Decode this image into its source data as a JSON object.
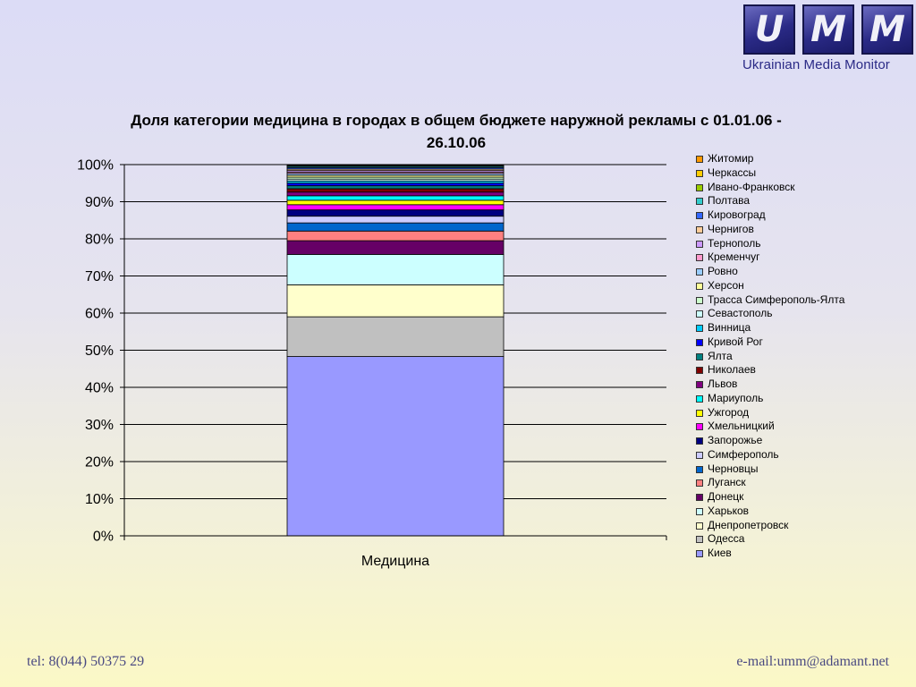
{
  "logo": {
    "letters": [
      "U",
      "M",
      "M"
    ],
    "caption": "Ukrainian Media Monitor"
  },
  "footer": {
    "tel": "tel: 8(044) 50375 29",
    "email": "e-mail:umm@adamant.net"
  },
  "chart_data": {
    "type": "bar",
    "stacked": true,
    "percent": true,
    "title": "Доля категории медицина в городах в общем  бюджете наружной рекламы с 01.01.06 - 26.10.06",
    "categories": [
      "Медицина"
    ],
    "ylim": [
      0,
      100
    ],
    "yticks": [
      "0%",
      "10%",
      "20%",
      "30%",
      "40%",
      "50%",
      "60%",
      "70%",
      "80%",
      "90%",
      "100%"
    ],
    "grid": true,
    "legend_position": "right",
    "series": [
      {
        "name": "Киев",
        "color": "#9999ff",
        "values": [
          48.3
        ]
      },
      {
        "name": "Одесса",
        "color": "#c0c0c0",
        "values": [
          10.7
        ]
      },
      {
        "name": "Днепропетровск",
        "color": "#ffffcc",
        "values": [
          8.6
        ]
      },
      {
        "name": "Харьков",
        "color": "#ccffff",
        "values": [
          8.2
        ]
      },
      {
        "name": "Донецк",
        "color": "#660066",
        "values": [
          3.7
        ]
      },
      {
        "name": "Луганск",
        "color": "#ff8080",
        "values": [
          2.6
        ]
      },
      {
        "name": "Черновцы",
        "color": "#0066cc",
        "values": [
          2.2
        ]
      },
      {
        "name": "Симферополь",
        "color": "#ccccff",
        "values": [
          1.8
        ]
      },
      {
        "name": "Запорожье",
        "color": "#000080",
        "values": [
          1.7
        ]
      },
      {
        "name": "Хмельницкий",
        "color": "#ff00ff",
        "values": [
          1.4
        ]
      },
      {
        "name": "Ужгород",
        "color": "#ffff00",
        "values": [
          1.2
        ]
      },
      {
        "name": "Мариуполь",
        "color": "#00ffff",
        "values": [
          1.2
        ]
      },
      {
        "name": "Львов",
        "color": "#800080",
        "values": [
          1.0
        ]
      },
      {
        "name": "Николаев",
        "color": "#800000",
        "values": [
          0.9
        ]
      },
      {
        "name": "Ялта",
        "color": "#008080",
        "values": [
          0.8
        ]
      },
      {
        "name": "Кривой Рог",
        "color": "#0000ff",
        "values": [
          0.7
        ]
      },
      {
        "name": "Винница",
        "color": "#00ccff",
        "values": [
          0.6
        ]
      },
      {
        "name": "Севастополь",
        "color": "#ccffff",
        "values": [
          0.5
        ]
      },
      {
        "name": "Трасса Симферополь-Ялта",
        "color": "#ccffcc",
        "values": [
          0.5
        ]
      },
      {
        "name": "Херсон",
        "color": "#ffff99",
        "values": [
          0.5
        ]
      },
      {
        "name": "Ровно",
        "color": "#99ccff",
        "values": [
          0.5
        ]
      },
      {
        "name": "Кременчуг",
        "color": "#ff99cc",
        "values": [
          0.4
        ]
      },
      {
        "name": "Тернополь",
        "color": "#cc99ff",
        "values": [
          0.4
        ]
      },
      {
        "name": "Чернигов",
        "color": "#ffcc99",
        "values": [
          0.4
        ]
      },
      {
        "name": "Кировоград",
        "color": "#3366ff",
        "values": [
          0.4
        ]
      },
      {
        "name": "Полтава",
        "color": "#33cccc",
        "values": [
          0.3
        ]
      },
      {
        "name": "Ивано-Франковск",
        "color": "#99cc00",
        "values": [
          0.2
        ]
      },
      {
        "name": "Черкассы",
        "color": "#ffcc00",
        "values": [
          0.2
        ]
      },
      {
        "name": "Житомир",
        "color": "#ff9900",
        "values": [
          0.1
        ]
      }
    ]
  }
}
